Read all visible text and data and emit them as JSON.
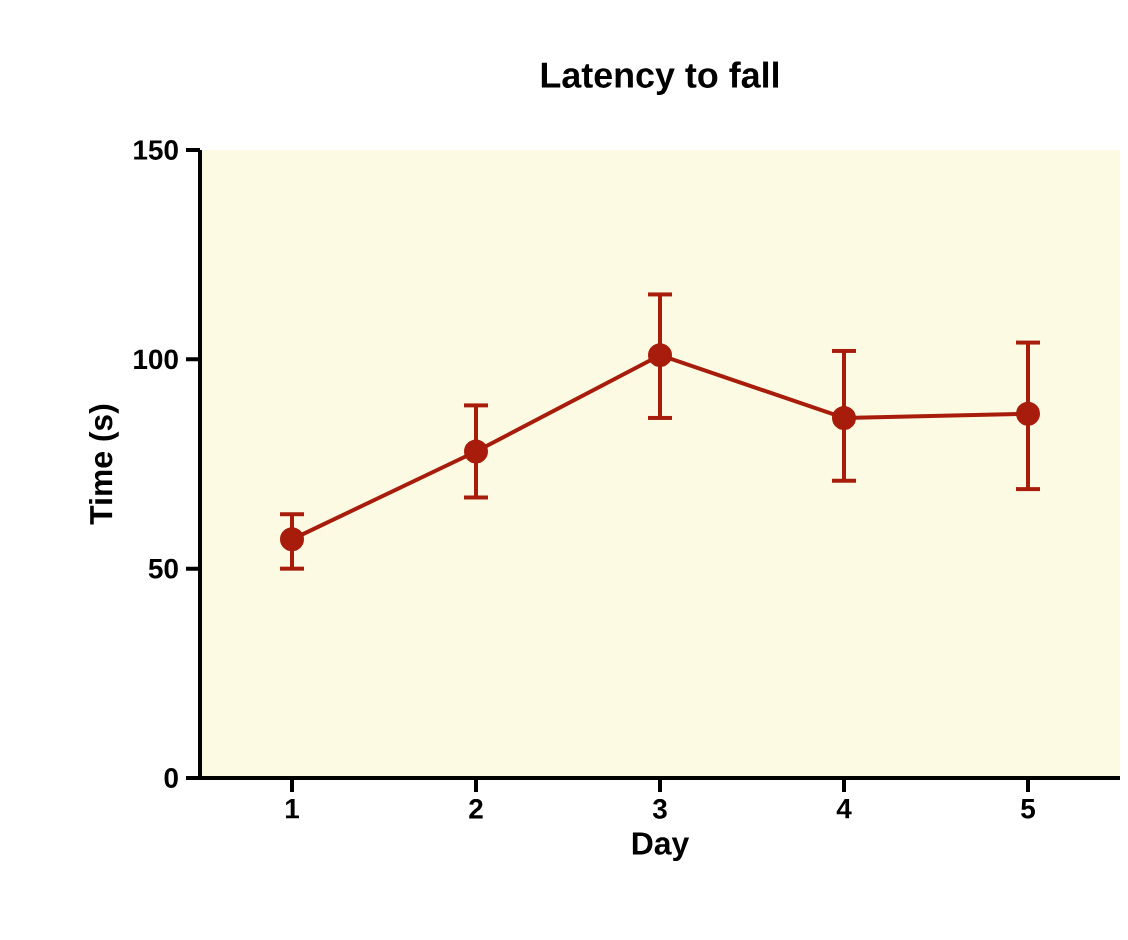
{
  "chart_data": {
    "type": "line",
    "title": "Latency to fall",
    "xlabel": "Day",
    "ylabel": "Time (s)",
    "x": [
      1,
      2,
      3,
      4,
      5
    ],
    "xlim": [
      0.5,
      5.5
    ],
    "xticks": [
      1,
      2,
      3,
      4,
      5
    ],
    "ylim": [
      0,
      150
    ],
    "yticks": [
      0,
      50,
      100,
      150
    ],
    "series": [
      {
        "color": "#a81c0c",
        "values": [
          57,
          78,
          101,
          86,
          87
        ],
        "errors": [
          [
            50,
            63
          ],
          [
            67,
            89
          ],
          [
            86,
            115.5
          ],
          [
            71,
            102
          ],
          [
            69,
            104
          ]
        ]
      }
    ],
    "marker": "circle",
    "line_style": "solid",
    "grid": false
  }
}
